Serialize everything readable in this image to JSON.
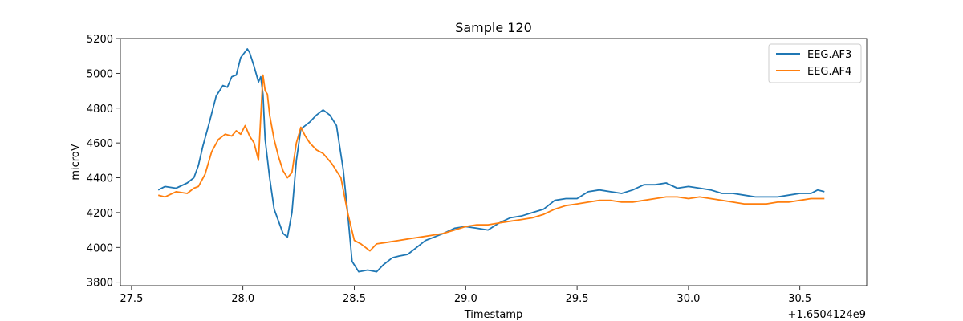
{
  "chart_data": {
    "type": "line",
    "title": "Sample 120",
    "xlabel": "Timestamp",
    "ylabel": "microV",
    "x_offset_label": "+1.6504124e9",
    "xlim": [
      27.45,
      30.8
    ],
    "ylim": [
      3780,
      5200
    ],
    "xticks": [
      27.5,
      28.0,
      28.5,
      29.0,
      29.5,
      30.0,
      30.5
    ],
    "xtick_labels": [
      "27.5",
      "28.0",
      "28.5",
      "29.0",
      "29.5",
      "30.0",
      "30.5"
    ],
    "yticks": [
      3800,
      4000,
      4200,
      4400,
      4600,
      4800,
      5000,
      5200
    ],
    "ytick_labels": [
      "3800",
      "4000",
      "4200",
      "4400",
      "4600",
      "4800",
      "5000",
      "5200"
    ],
    "grid": false,
    "legend_position": "top-right",
    "series": [
      {
        "name": "EEG.AF3",
        "color": "#1f77b4",
        "points": [
          [
            27.62,
            4330
          ],
          [
            27.65,
            4350
          ],
          [
            27.7,
            4340
          ],
          [
            27.75,
            4370
          ],
          [
            27.78,
            4400
          ],
          [
            27.8,
            4470
          ],
          [
            27.82,
            4580
          ],
          [
            27.85,
            4720
          ],
          [
            27.88,
            4870
          ],
          [
            27.91,
            4930
          ],
          [
            27.93,
            4920
          ],
          [
            27.95,
            4980
          ],
          [
            27.97,
            4990
          ],
          [
            27.99,
            5090
          ],
          [
            28.02,
            5140
          ],
          [
            28.03,
            5120
          ],
          [
            28.05,
            5040
          ],
          [
            28.07,
            4950
          ],
          [
            28.08,
            4980
          ],
          [
            28.09,
            4880
          ],
          [
            28.1,
            4620
          ],
          [
            28.12,
            4400
          ],
          [
            28.14,
            4220
          ],
          [
            28.16,
            4150
          ],
          [
            28.18,
            4080
          ],
          [
            28.2,
            4060
          ],
          [
            28.22,
            4200
          ],
          [
            28.24,
            4500
          ],
          [
            28.26,
            4680
          ],
          [
            28.3,
            4720
          ],
          [
            28.33,
            4760
          ],
          [
            28.36,
            4790
          ],
          [
            28.39,
            4760
          ],
          [
            28.42,
            4700
          ],
          [
            28.45,
            4450
          ],
          [
            28.47,
            4200
          ],
          [
            28.49,
            3920
          ],
          [
            28.52,
            3860
          ],
          [
            28.56,
            3870
          ],
          [
            28.6,
            3860
          ],
          [
            28.63,
            3900
          ],
          [
            28.67,
            3940
          ],
          [
            28.7,
            3950
          ],
          [
            28.74,
            3960
          ],
          [
            28.78,
            4000
          ],
          [
            28.82,
            4040
          ],
          [
            28.86,
            4060
          ],
          [
            28.9,
            4080
          ],
          [
            28.95,
            4110
          ],
          [
            29.0,
            4120
          ],
          [
            29.05,
            4110
          ],
          [
            29.1,
            4100
          ],
          [
            29.15,
            4140
          ],
          [
            29.2,
            4170
          ],
          [
            29.25,
            4180
          ],
          [
            29.3,
            4200
          ],
          [
            29.35,
            4220
          ],
          [
            29.4,
            4270
          ],
          [
            29.45,
            4280
          ],
          [
            29.5,
            4280
          ],
          [
            29.55,
            4320
          ],
          [
            29.6,
            4330
          ],
          [
            29.65,
            4320
          ],
          [
            29.7,
            4310
          ],
          [
            29.75,
            4330
          ],
          [
            29.8,
            4360
          ],
          [
            29.85,
            4360
          ],
          [
            29.9,
            4370
          ],
          [
            29.95,
            4340
          ],
          [
            30.0,
            4350
          ],
          [
            30.05,
            4340
          ],
          [
            30.1,
            4330
          ],
          [
            30.15,
            4310
          ],
          [
            30.2,
            4310
          ],
          [
            30.25,
            4300
          ],
          [
            30.3,
            4290
          ],
          [
            30.35,
            4290
          ],
          [
            30.4,
            4290
          ],
          [
            30.45,
            4300
          ],
          [
            30.5,
            4310
          ],
          [
            30.55,
            4310
          ],
          [
            30.58,
            4330
          ],
          [
            30.61,
            4320
          ]
        ]
      },
      {
        "name": "EEG.AF4",
        "color": "#ff7f0e",
        "points": [
          [
            27.62,
            4300
          ],
          [
            27.65,
            4290
          ],
          [
            27.7,
            4320
          ],
          [
            27.75,
            4310
          ],
          [
            27.78,
            4340
          ],
          [
            27.8,
            4350
          ],
          [
            27.83,
            4420
          ],
          [
            27.86,
            4550
          ],
          [
            27.89,
            4620
          ],
          [
            27.92,
            4650
          ],
          [
            27.95,
            4640
          ],
          [
            27.97,
            4670
          ],
          [
            27.99,
            4650
          ],
          [
            28.01,
            4700
          ],
          [
            28.03,
            4640
          ],
          [
            28.05,
            4600
          ],
          [
            28.07,
            4500
          ],
          [
            28.08,
            4750
          ],
          [
            28.09,
            4990
          ],
          [
            28.1,
            4900
          ],
          [
            28.11,
            4880
          ],
          [
            28.12,
            4760
          ],
          [
            28.14,
            4620
          ],
          [
            28.16,
            4520
          ],
          [
            28.18,
            4440
          ],
          [
            28.2,
            4400
          ],
          [
            28.22,
            4430
          ],
          [
            28.24,
            4600
          ],
          [
            28.26,
            4690
          ],
          [
            28.28,
            4640
          ],
          [
            28.3,
            4600
          ],
          [
            28.33,
            4560
          ],
          [
            28.36,
            4540
          ],
          [
            28.4,
            4480
          ],
          [
            28.44,
            4400
          ],
          [
            28.47,
            4200
          ],
          [
            28.5,
            4040
          ],
          [
            28.53,
            4020
          ],
          [
            28.57,
            3980
          ],
          [
            28.6,
            4020
          ],
          [
            28.65,
            4030
          ],
          [
            28.7,
            4040
          ],
          [
            28.75,
            4050
          ],
          [
            28.8,
            4060
          ],
          [
            28.85,
            4070
          ],
          [
            28.9,
            4080
          ],
          [
            28.95,
            4100
          ],
          [
            29.0,
            4120
          ],
          [
            29.05,
            4130
          ],
          [
            29.1,
            4130
          ],
          [
            29.15,
            4140
          ],
          [
            29.2,
            4150
          ],
          [
            29.25,
            4160
          ],
          [
            29.3,
            4170
          ],
          [
            29.35,
            4190
          ],
          [
            29.4,
            4220
          ],
          [
            29.45,
            4240
          ],
          [
            29.5,
            4250
          ],
          [
            29.55,
            4260
          ],
          [
            29.6,
            4270
          ],
          [
            29.65,
            4270
          ],
          [
            29.7,
            4260
          ],
          [
            29.75,
            4260
          ],
          [
            29.8,
            4270
          ],
          [
            29.85,
            4280
          ],
          [
            29.9,
            4290
          ],
          [
            29.95,
            4290
          ],
          [
            30.0,
            4280
          ],
          [
            30.05,
            4290
          ],
          [
            30.1,
            4280
          ],
          [
            30.15,
            4270
          ],
          [
            30.2,
            4260
          ],
          [
            30.25,
            4250
          ],
          [
            30.3,
            4250
          ],
          [
            30.35,
            4250
          ],
          [
            30.4,
            4260
          ],
          [
            30.45,
            4260
          ],
          [
            30.5,
            4270
          ],
          [
            30.55,
            4280
          ],
          [
            30.58,
            4280
          ],
          [
            30.61,
            4280
          ]
        ]
      }
    ]
  }
}
